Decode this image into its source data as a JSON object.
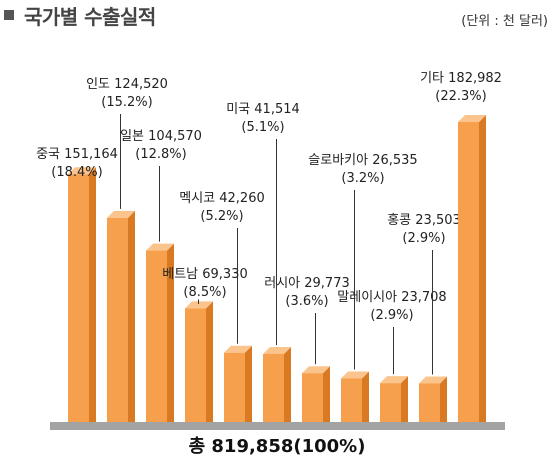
{
  "header": {
    "title": "국가별 수출실적",
    "unit": "(단위 : 천 달러)"
  },
  "total_label": "총 819,858(100%)",
  "colors": {
    "bar_front": "#f6a04d",
    "bar_side": "#d97a22",
    "bar_top": "#fbc48c",
    "leader": "#333333",
    "baseline": "#a3a3a3"
  },
  "chart_data": {
    "type": "bar",
    "title": "국가별 수출실적",
    "unit": "(단위 : 천 달러)",
    "categories": [
      "중국",
      "인도",
      "일본",
      "베트남",
      "멕시코",
      "미국",
      "러시아",
      "슬로바키아",
      "말레이시아",
      "홍콩",
      "기타"
    ],
    "values": [
      151164,
      124520,
      104570,
      69330,
      42260,
      41514,
      29773,
      26535,
      23708,
      23503,
      182982
    ],
    "value_labels": [
      "151,164",
      "124,520",
      "104,570",
      "69,330",
      "42,260",
      "41,514",
      "29,773",
      "26,535",
      "23,708",
      "23,503",
      "182,982"
    ],
    "percent_labels": [
      "(18.4%)",
      "(15.2%)",
      "(12.8%)",
      "(8.5%)",
      "(5.2%)",
      "(5.1%)",
      "(3.6%)",
      "(3.2%)",
      "(2.9%)",
      "(2.9%)",
      "(22.3%)"
    ],
    "total": 819858,
    "grid": false
  }
}
